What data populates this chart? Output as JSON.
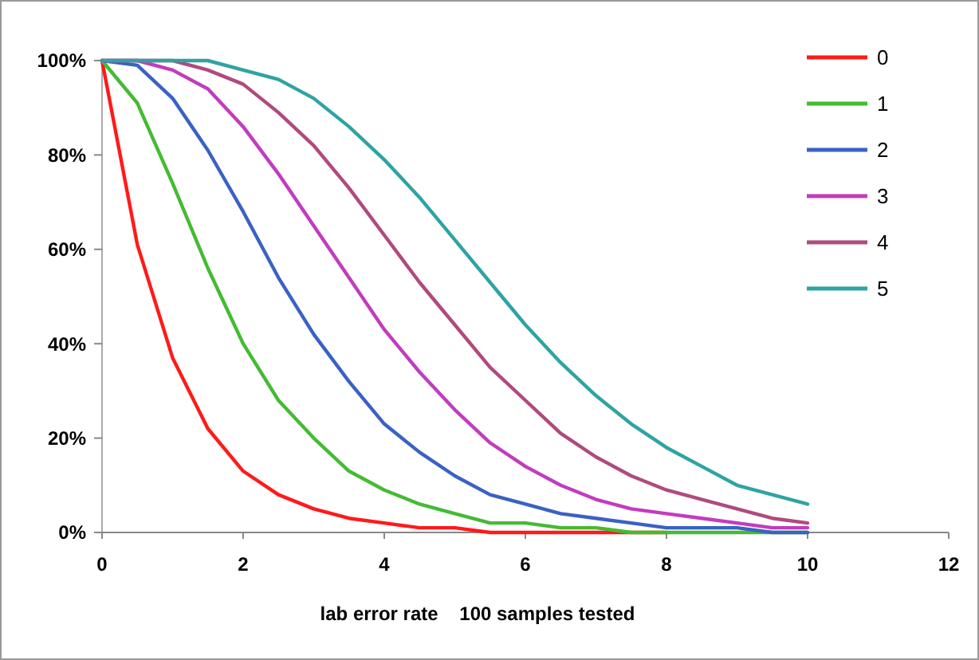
{
  "chart_data": {
    "type": "line",
    "xlabel": "lab error rate    100 samples tested",
    "x": [
      0,
      0.5,
      1,
      1.5,
      2,
      2.5,
      3,
      3.5,
      4,
      4.5,
      5,
      5.5,
      6,
      6.5,
      7,
      7.5,
      8,
      8.5,
      9,
      9.5,
      10
    ],
    "series": [
      {
        "name": "0",
        "color": "#ff1a1a",
        "values": [
          100,
          61,
          37,
          22,
          13,
          8,
          5,
          3,
          2,
          1,
          1,
          0,
          0,
          0,
          0,
          0,
          0,
          null,
          null,
          null,
          null
        ]
      },
      {
        "name": "1",
        "color": "#44bb33",
        "values": [
          100,
          91,
          74,
          56,
          40,
          28,
          20,
          13,
          9,
          6,
          4,
          2,
          2,
          1,
          1,
          0,
          0,
          0,
          0,
          0,
          0
        ]
      },
      {
        "name": "2",
        "color": "#3a62c4",
        "values": [
          100,
          99,
          92,
          81,
          68,
          54,
          42,
          32,
          23,
          17,
          12,
          8,
          6,
          4,
          3,
          2,
          1,
          1,
          1,
          0,
          0
        ]
      },
      {
        "name": "3",
        "color": "#c23cbf",
        "values": [
          100,
          100,
          98,
          94,
          86,
          76,
          65,
          54,
          43,
          34,
          26,
          19,
          14,
          10,
          7,
          5,
          4,
          3,
          2,
          1,
          1
        ]
      },
      {
        "name": "4",
        "color": "#b04a7e",
        "values": [
          100,
          100,
          100,
          98,
          95,
          89,
          82,
          73,
          63,
          53,
          44,
          35,
          28,
          21,
          16,
          12,
          9,
          7,
          5,
          3,
          2
        ]
      },
      {
        "name": "5",
        "color": "#2fa3a3",
        "values": [
          100,
          100,
          100,
          100,
          98,
          96,
          92,
          86,
          79,
          71,
          62,
          53,
          44,
          36,
          29,
          23,
          18,
          14,
          10,
          8,
          6
        ]
      }
    ],
    "xlim": [
      0,
      12
    ],
    "xticks": [
      0,
      2,
      4,
      6,
      8,
      10,
      12
    ],
    "ylim": [
      0,
      100
    ],
    "yticks": [
      {
        "value": 0,
        "label": "0%"
      },
      {
        "value": 20,
        "label": "20%"
      },
      {
        "value": 40,
        "label": "40%"
      },
      {
        "value": 60,
        "label": "60%"
      },
      {
        "value": 80,
        "label": "80%"
      },
      {
        "value": 100,
        "label": "100%"
      }
    ],
    "grid": false,
    "legend": "top right",
    "marker": "none",
    "line_style": "solid"
  }
}
